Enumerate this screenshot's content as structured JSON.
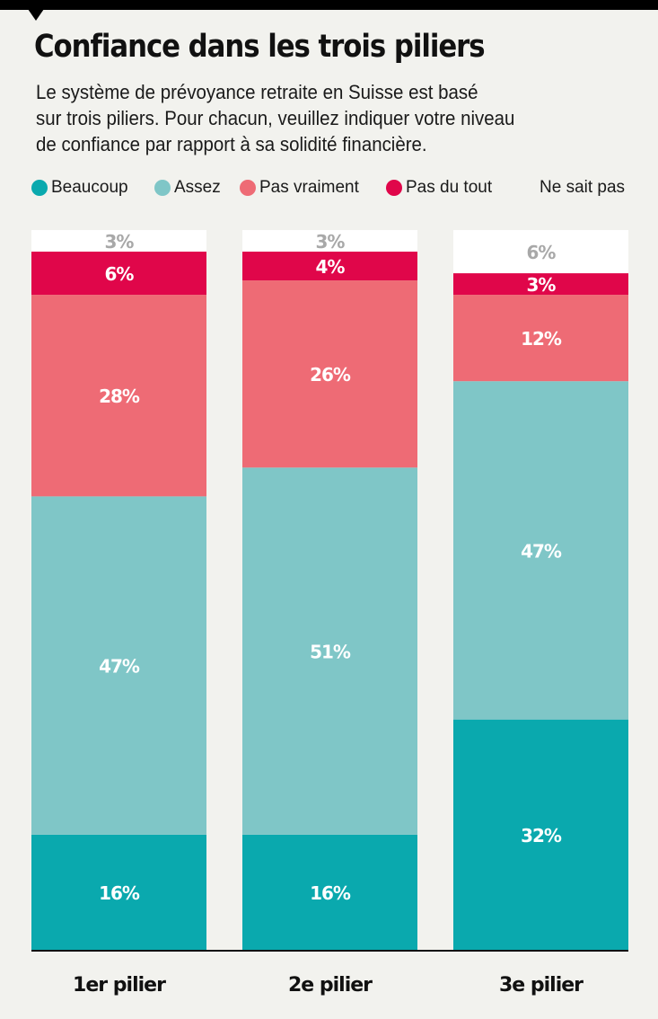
{
  "title": "Confiance dans les trois piliers",
  "subtitle": "Le système de prévoyance retraite en Suisse est basé\nsur trois piliers. Pour chacun, veuillez indiquer votre niveau\nde confiance par rapport à sa solidité financière.",
  "chart_data": {
    "type": "bar",
    "stacked": true,
    "orientation": "vertical",
    "categories": [
      "1er pilier",
      "2e pilier",
      "3e pilier"
    ],
    "ylim": [
      0,
      100
    ],
    "grid": false,
    "legend_placement": "top",
    "series": [
      {
        "name": "Beaucoup",
        "color": "#0aa9ae",
        "label_color": "#ffffff",
        "values": [
          16,
          16,
          32
        ]
      },
      {
        "name": "Assez",
        "color": "#7fc6c7",
        "label_color": "#ffffff",
        "values": [
          47,
          51,
          47
        ]
      },
      {
        "name": "Pas vraiment",
        "color": "#ee6b75",
        "label_color": "#ffffff",
        "values": [
          28,
          26,
          12
        ]
      },
      {
        "name": "Pas du tout",
        "color": "#e0064a",
        "label_color": "#ffffff",
        "values": [
          6,
          4,
          3
        ]
      },
      {
        "name": "Ne sait pas",
        "color": "#ffffff",
        "label_color": "#a8a8a8",
        "values": [
          3,
          3,
          6
        ]
      }
    ]
  }
}
